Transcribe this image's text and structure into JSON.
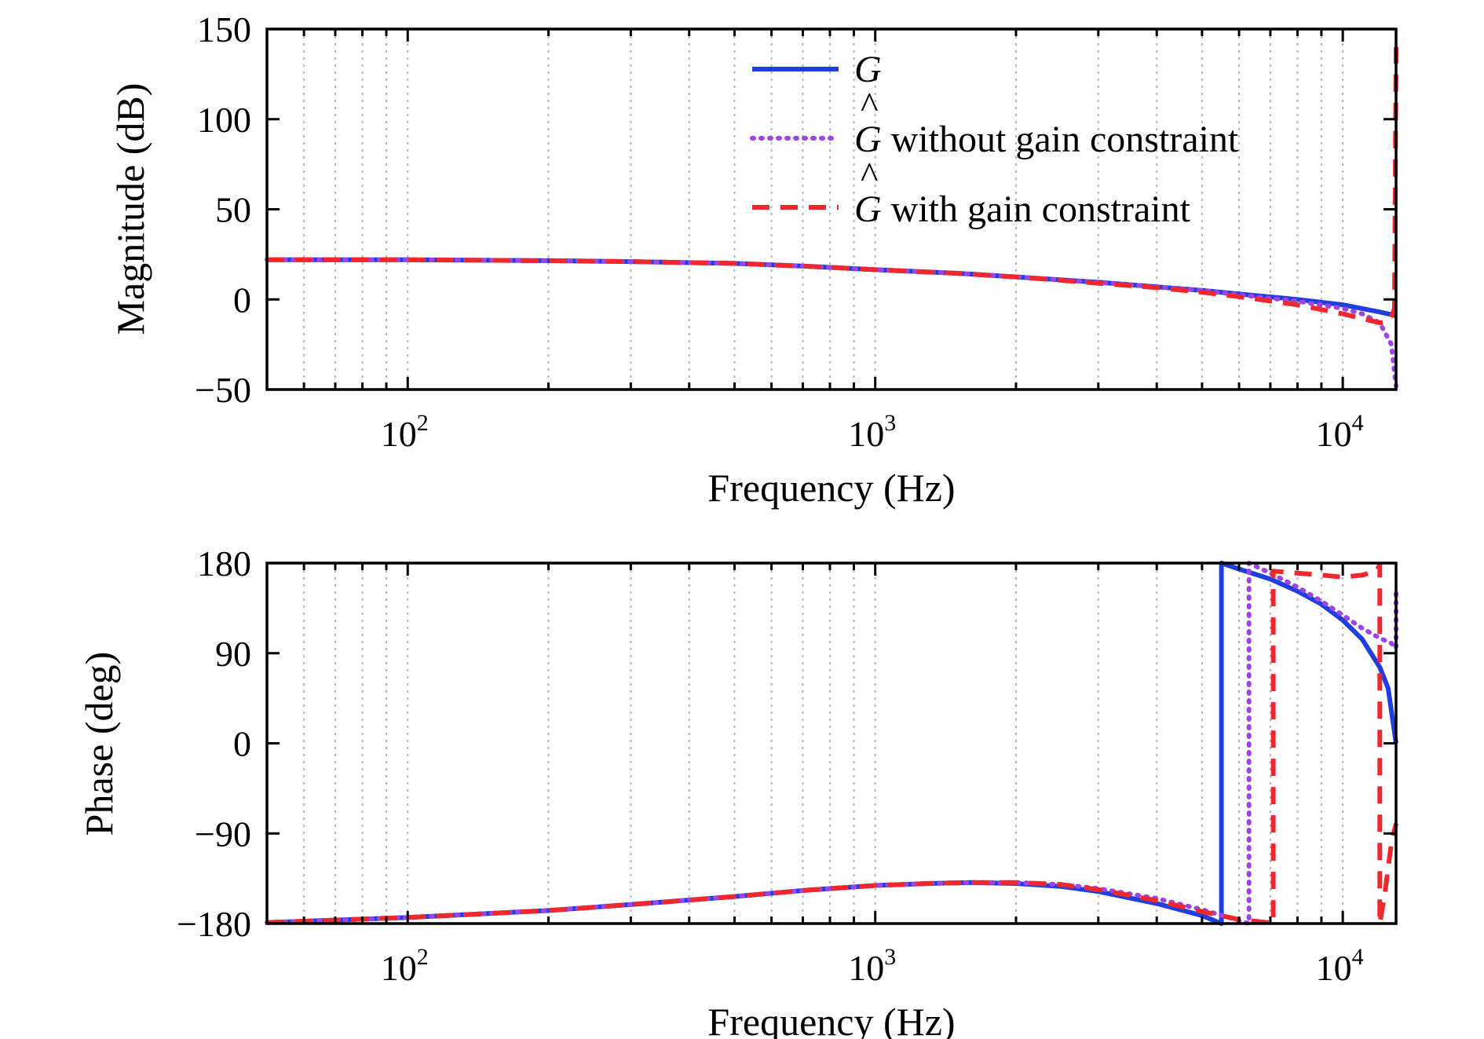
{
  "chart_data": [
    {
      "type": "line",
      "ylabel": "Magnitude (dB)",
      "xlabel": "Frequency (Hz)",
      "xscale": "log",
      "xlim": [
        50,
        13000
      ],
      "ylim": [
        -50,
        150
      ],
      "yticks": [
        "150",
        "100",
        "50",
        "0",
        "−50"
      ],
      "ytick_values": [
        150,
        100,
        50,
        0,
        -50
      ],
      "xticks": [
        {
          "value": 100,
          "base": "10",
          "exp": "2"
        },
        {
          "value": 1000,
          "base": "10",
          "exp": "3"
        },
        {
          "value": 10000,
          "base": "10",
          "exp": "4"
        }
      ],
      "grid": "x-minor",
      "legend": {
        "position": "top-right",
        "entries": [
          {
            "symbol": "G",
            "hat": false,
            "text": ""
          },
          {
            "symbol": "G",
            "hat": true,
            "text": " without gain constraint"
          },
          {
            "symbol": "G",
            "hat": true,
            "text": " with gain constraint"
          }
        ]
      },
      "series": [
        {
          "name": "G",
          "color": "#1f3ee0",
          "style": "solid",
          "x": [
            50,
            100,
            200,
            300,
            500,
            700,
            1000,
            1500,
            2000,
            3000,
            4000,
            5000,
            6000,
            8000,
            10000,
            12000,
            13000
          ],
          "y": [
            22,
            22,
            21.5,
            21,
            20,
            18.5,
            16.5,
            14.5,
            12.5,
            9.5,
            7,
            5,
            3,
            0,
            -3,
            -7,
            -9
          ]
        },
        {
          "name": "Ĝ without gain constraint",
          "color": "#9b45e8",
          "style": "dotted",
          "x": [
            50,
            100,
            200,
            300,
            500,
            700,
            1000,
            1500,
            2000,
            3000,
            4000,
            5000,
            6000,
            8000,
            10000,
            11000,
            12000,
            12700,
            13000
          ],
          "y": [
            22,
            22,
            21.5,
            21,
            20,
            18.5,
            16.5,
            14.5,
            12.5,
            9.5,
            7,
            5,
            2.5,
            -1,
            -5,
            -8,
            -13,
            -25,
            -48
          ]
        },
        {
          "name": "Ĝ with gain constraint",
          "color": "#f0282d",
          "style": "dashed",
          "x": [
            50,
            100,
            200,
            300,
            500,
            700,
            1000,
            1500,
            2000,
            3000,
            4000,
            5000,
            6000,
            8000,
            10000,
            12000,
            12600,
            12900,
            13000
          ],
          "y": [
            22,
            22,
            21.5,
            21,
            20,
            18.5,
            16.5,
            14.5,
            12.5,
            9,
            6.5,
            4,
            1.5,
            -3,
            -8,
            -13,
            -12,
            -5,
            140
          ]
        }
      ]
    },
    {
      "type": "line",
      "ylabel": "Phase (deg)",
      "xlabel": "Frequency (Hz)",
      "xscale": "log",
      "xlim": [
        50,
        13000
      ],
      "ylim": [
        -180,
        180
      ],
      "yticks": [
        "180",
        "90",
        "0",
        "−90",
        "−180"
      ],
      "ytick_values": [
        180,
        90,
        0,
        -90,
        -180
      ],
      "xticks": [
        {
          "value": 100,
          "base": "10",
          "exp": "2"
        },
        {
          "value": 1000,
          "base": "10",
          "exp": "3"
        },
        {
          "value": 10000,
          "base": "10",
          "exp": "4"
        }
      ],
      "grid": "x-minor",
      "series": [
        {
          "name": "G",
          "color": "#1f3ee0",
          "style": "solid",
          "x": [
            50,
            100,
            200,
            300,
            500,
            700,
            1000,
            1300,
            1600,
            2000,
            2500,
            3000,
            4000,
            5000,
            5500,
            5500,
            6000,
            7000,
            8000,
            9000,
            10000,
            11000,
            12000,
            12500,
            13000
          ],
          "y": [
            -179,
            -174,
            -167,
            -161,
            -153,
            -147,
            -142,
            -140,
            -139,
            -140,
            -143,
            -148,
            -160,
            -172,
            -180,
            180,
            174,
            164,
            152,
            139,
            123,
            104,
            76,
            55,
            0
          ]
        },
        {
          "name": "Ĝ without gain constraint",
          "color": "#9b45e8",
          "style": "dotted",
          "x": [
            50,
            100,
            200,
            300,
            500,
            700,
            1000,
            1300,
            1600,
            2000,
            2500,
            3000,
            4000,
            5000,
            6000,
            6300,
            6300,
            7000,
            8000,
            9000,
            10000,
            11000,
            12000,
            12700,
            13000,
            13000
          ],
          "y": [
            -179,
            -174,
            -167,
            -161,
            -153,
            -147,
            -142,
            -140,
            -139,
            -139,
            -141,
            -145,
            -155,
            -166,
            -177,
            -180,
            180,
            170,
            156,
            142,
            128,
            115,
            105,
            100,
            95,
            150
          ]
        },
        {
          "name": "Ĝ with gain constraint",
          "color": "#f0282d",
          "style": "dashed",
          "x": [
            50,
            100,
            200,
            300,
            500,
            700,
            1000,
            1300,
            1600,
            2000,
            2500,
            3000,
            4000,
            5000,
            6000,
            6900,
            7100,
            7100,
            8000,
            9000,
            10000,
            11000,
            11800,
            12000,
            12000,
            12300,
            12700,
            13000
          ],
          "y": [
            -179,
            -174,
            -167,
            -161,
            -153,
            -147,
            -142,
            -140,
            -139,
            -139,
            -141,
            -146,
            -157,
            -168,
            -176,
            -179,
            -180,
            172,
            170,
            168,
            166,
            168,
            172,
            178,
            -180,
            -150,
            -100,
            -80
          ]
        }
      ]
    }
  ]
}
